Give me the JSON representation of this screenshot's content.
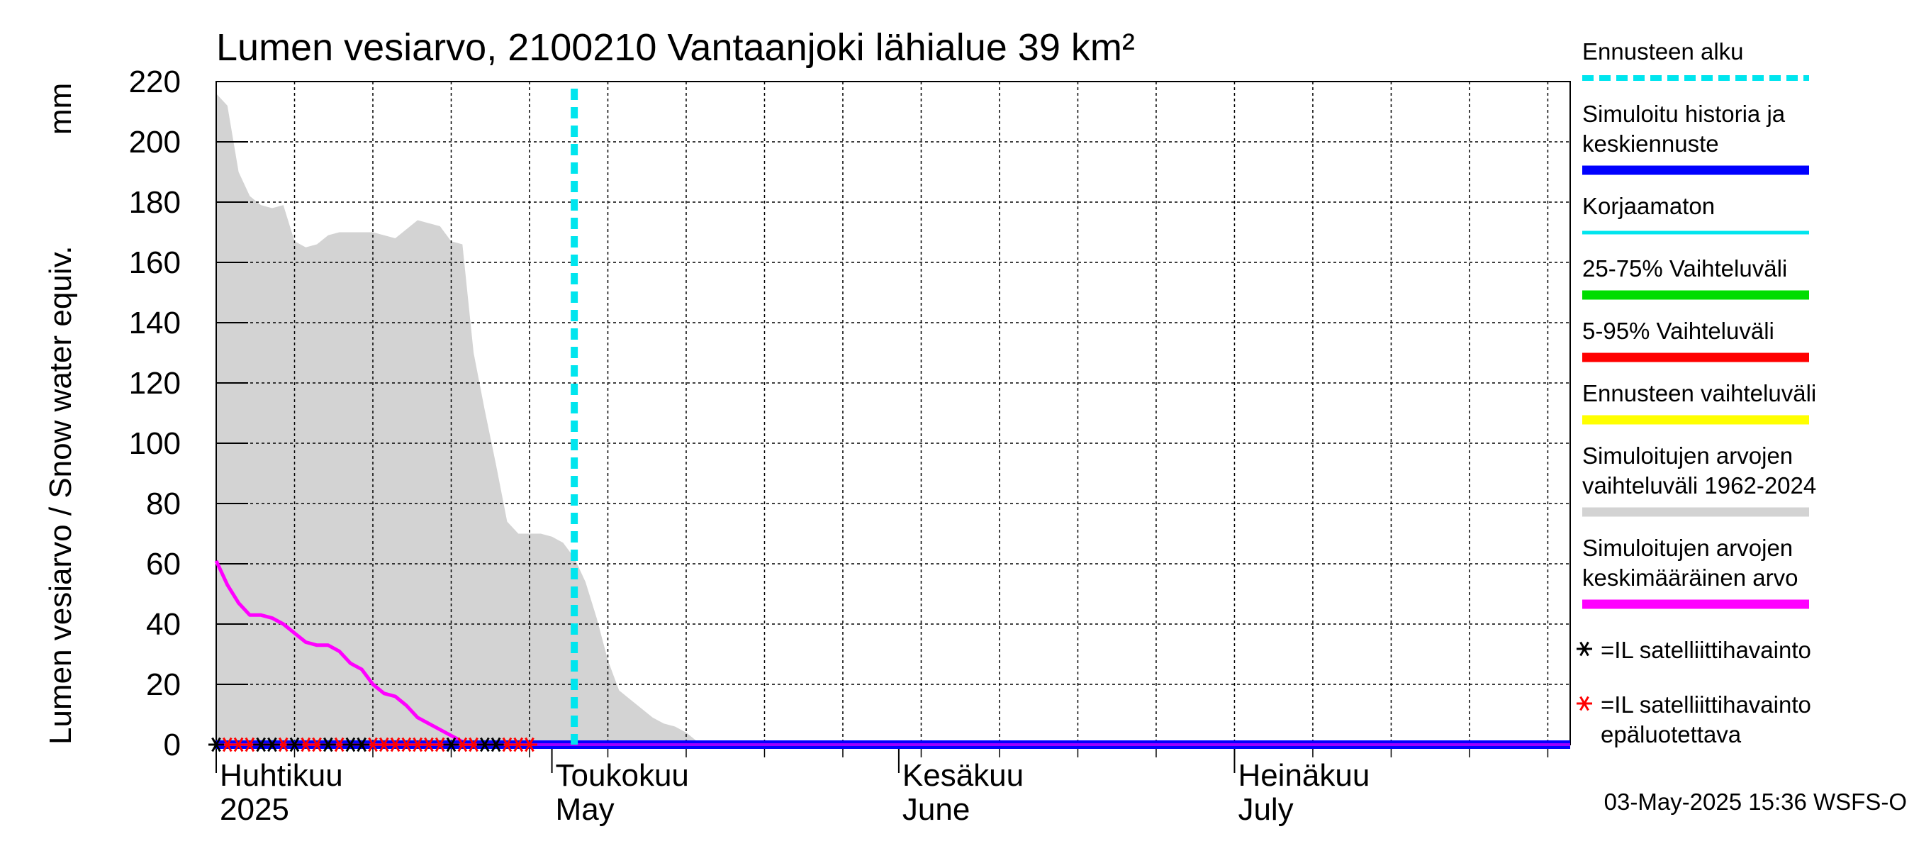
{
  "chart_data": {
    "type": "line",
    "title": "Lumen vesiarvo, 2100210 Vantaanjoki lähialue 39 km²",
    "ylabel_left": "Lumen vesiarvo / Snow water equiv.",
    "ylabel_unit": "mm",
    "ylim": [
      0,
      220
    ],
    "yticks": [
      0,
      20,
      40,
      60,
      80,
      100,
      120,
      140,
      160,
      180,
      200,
      220
    ],
    "x_range": [
      "2025-04-01",
      "2025-07-31"
    ],
    "grid": true,
    "month_labels": [
      {
        "date": "2025-04-01",
        "fi": "Huhtikuu",
        "en": "2025"
      },
      {
        "date": "2025-05-01",
        "fi": "Toukokuu",
        "en": "May"
      },
      {
        "date": "2025-06-01",
        "fi": "Kesäkuu",
        "en": "June"
      },
      {
        "date": "2025-07-01",
        "fi": "Heinäkuu",
        "en": "July"
      }
    ],
    "forecast_start": "2025-05-03",
    "range_band": {
      "name": "Simuloitujen arvojen vaihteluväli 1962-2024",
      "color": "#d3d3d3",
      "x": [
        "2025-04-01",
        "2025-04-02",
        "2025-04-03",
        "2025-04-04",
        "2025-04-05",
        "2025-04-06",
        "2025-04-07",
        "2025-04-08",
        "2025-04-09",
        "2025-04-10",
        "2025-04-11",
        "2025-04-12",
        "2025-04-13",
        "2025-04-14",
        "2025-04-15",
        "2025-04-17",
        "2025-04-19",
        "2025-04-21",
        "2025-04-22",
        "2025-04-23",
        "2025-04-24",
        "2025-04-25",
        "2025-04-26",
        "2025-04-27",
        "2025-04-28",
        "2025-04-29",
        "2025-04-30",
        "2025-05-01",
        "2025-05-02",
        "2025-05-03",
        "2025-05-04",
        "2025-05-05",
        "2025-05-06",
        "2025-05-07",
        "2025-05-08",
        "2025-05-09",
        "2025-05-10",
        "2025-05-11",
        "2025-05-12",
        "2025-05-13",
        "2025-05-14",
        "2025-05-15",
        "2025-07-31"
      ],
      "upper": [
        216,
        212,
        190,
        182,
        179,
        178,
        179,
        167,
        165,
        166,
        169,
        170,
        170,
        170,
        170,
        168,
        174,
        172,
        167,
        166,
        130,
        111,
        93,
        74,
        70,
        70,
        70,
        69,
        67,
        62,
        54,
        42,
        28,
        18,
        15,
        12,
        9,
        7,
        6,
        4,
        1,
        0,
        0
      ],
      "lower": [
        0,
        0,
        0,
        0,
        0,
        0,
        0,
        0,
        0,
        0,
        0,
        0,
        0,
        0,
        0,
        0,
        0,
        0,
        0,
        0,
        0,
        0,
        0,
        0,
        0,
        0,
        0,
        0,
        0,
        0,
        0,
        0,
        0,
        0,
        0,
        0,
        0,
        0,
        0,
        0,
        0,
        0,
        0
      ]
    },
    "series": [
      {
        "name": "Simuloitujen arvojen keskimääräinen arvo",
        "color": "#ff00ff",
        "x": [
          "2025-04-01",
          "2025-04-02",
          "2025-04-03",
          "2025-04-04",
          "2025-04-05",
          "2025-04-06",
          "2025-04-07",
          "2025-04-08",
          "2025-04-09",
          "2025-04-10",
          "2025-04-11",
          "2025-04-12",
          "2025-04-13",
          "2025-04-14",
          "2025-04-15",
          "2025-04-16",
          "2025-04-17",
          "2025-04-18",
          "2025-04-19",
          "2025-04-20",
          "2025-04-21",
          "2025-04-22",
          "2025-04-23",
          "2025-04-24"
        ],
        "values": [
          61,
          53,
          47,
          43,
          43,
          42,
          40,
          37,
          34,
          33,
          33,
          31,
          27,
          25,
          20,
          17,
          16,
          13,
          9,
          7,
          5,
          3,
          1,
          0
        ]
      },
      {
        "name": "Simuloitu historia ja keskiennuste",
        "color": "#0000ff",
        "x": [
          "2025-04-01",
          "2025-07-31"
        ],
        "values": [
          0,
          0
        ]
      }
    ],
    "satellite_obs": {
      "reliable": {
        "name": "=IL satelliittihavainto",
        "color": "#000000",
        "x": [
          "2025-04-01",
          "2025-04-05",
          "2025-04-06",
          "2025-04-08",
          "2025-04-11",
          "2025-04-13",
          "2025-04-14",
          "2025-04-22",
          "2025-04-25",
          "2025-04-26"
        ],
        "values": [
          0,
          0,
          0,
          0,
          0,
          0,
          0,
          0,
          0,
          0
        ]
      },
      "unreliable": {
        "name": "=IL satelliittihavainto epäluotettava",
        "color": "#ff0000",
        "x": [
          "2025-04-02",
          "2025-04-03",
          "2025-04-04",
          "2025-04-07",
          "2025-04-09",
          "2025-04-10",
          "2025-04-12",
          "2025-04-15",
          "2025-04-16",
          "2025-04-17",
          "2025-04-18",
          "2025-04-19",
          "2025-04-20",
          "2025-04-21",
          "2025-04-23",
          "2025-04-24",
          "2025-04-27",
          "2025-04-28",
          "2025-04-29"
        ],
        "values": [
          0,
          0,
          0,
          0,
          0,
          0,
          0,
          0,
          0,
          0,
          0,
          0,
          0,
          0,
          0,
          0,
          0,
          0,
          0
        ]
      }
    },
    "legend": [
      {
        "lines": [
          "Ennusteen alku"
        ],
        "style": "dashed",
        "color": "#00e5ee"
      },
      {
        "lines": [
          "Simuloitu historia ja",
          "keskiennuste"
        ],
        "style": "solid",
        "color": "#0000ff"
      },
      {
        "lines": [
          "Korjaamaton"
        ],
        "style": "thin",
        "color": "#00e5ee"
      },
      {
        "lines": [
          "25-75% Vaihteluväli"
        ],
        "style": "solid",
        "color": "#00dd00"
      },
      {
        "lines": [
          "5-95% Vaihteluväli"
        ],
        "style": "solid",
        "color": "#ff0000"
      },
      {
        "lines": [
          "Ennusteen vaihteluväli"
        ],
        "style": "solid",
        "color": "#ffff00"
      },
      {
        "lines": [
          "Simuloitujen arvojen",
          "vaihteluväli 1962-2024"
        ],
        "style": "solid",
        "color": "#d3d3d3"
      },
      {
        "lines": [
          "Simuloitujen arvojen",
          "keskimääräinen arvo"
        ],
        "style": "solid",
        "color": "#ff00ff"
      },
      {
        "lines": [
          "=IL satelliittihavainto"
        ],
        "style": "star",
        "color": "#000000"
      },
      {
        "lines": [
          "=IL satelliittihavainto",
          "epäluotettava"
        ],
        "style": "star",
        "color": "#ff0000"
      }
    ],
    "footer": "03-May-2025 15:36 WSFS-O"
  }
}
